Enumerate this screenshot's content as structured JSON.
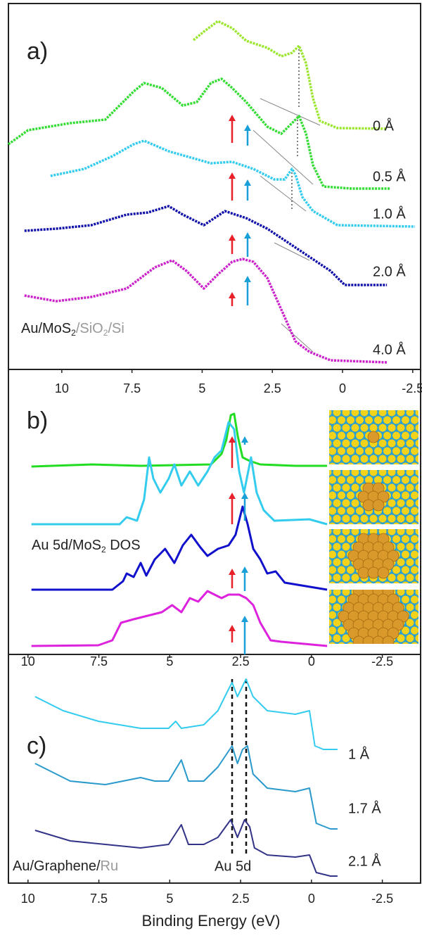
{
  "chart_data": [
    {
      "type": "line",
      "label": "a)",
      "sample_label": [
        "Au/MoS",
        "2",
        "/SiO",
        "2",
        "/Si"
      ],
      "xlim": [
        11.9,
        -2.78
      ],
      "ylim": [
        0,
        520
      ],
      "series": [
        {
          "name": "0 Å",
          "color": "#9be62e",
          "x": [
            5.31,
            4.94,
            4.44,
            3.93,
            3.43,
            2.68,
            2.18,
            1.8,
            1.55,
            1.3,
            1.05,
            0.8,
            0.18,
            -1.58
          ],
          "values": [
            468,
            480,
            495,
            485,
            467,
            457,
            445,
            450,
            460,
            435,
            385,
            353,
            343,
            342
          ]
        },
        {
          "name": "0.5 Å",
          "color": "#33dd33",
          "x": [
            11.9,
            11.2,
            9.7,
            8.45,
            7.44,
            7.07,
            6.44,
            5.69,
            5.19,
            4.69,
            4.31,
            3.93,
            3.43,
            2.68,
            2.18,
            1.8,
            1.55,
            1.3,
            1.05,
            0.68,
            -0.33,
            -1.7
          ],
          "values": [
            320,
            340,
            350,
            355,
            395,
            407,
            400,
            375,
            380,
            407,
            413,
            400,
            380,
            345,
            335,
            350,
            360,
            335,
            290,
            260,
            257,
            257
          ]
        },
        {
          "name": "1.0 Å",
          "color": "#33ccee",
          "x": [
            10.4,
            9.2,
            8.2,
            7.44,
            7.07,
            6.19,
            5.31,
            4.69,
            3.93,
            3.18,
            2.43,
            2.06,
            1.8,
            1.68,
            1.43,
            1.05,
            0.18,
            -2.58
          ],
          "values": [
            275,
            285,
            303,
            320,
            325,
            310,
            300,
            293,
            295,
            285,
            270,
            270,
            285,
            277,
            245,
            225,
            205,
            203
          ]
        },
        {
          "name": "2.0 Å",
          "color": "#1111aa",
          "x": [
            11.33,
            10.2,
            8.95,
            7.69,
            6.94,
            6.19,
            5.69,
            4.94,
            4.19,
            3.43,
            2.68,
            1.93,
            1.18,
            0.43,
            -0.08,
            -1.58
          ],
          "values": [
            197,
            200,
            205,
            220,
            223,
            232,
            220,
            205,
            225,
            215,
            200,
            180,
            160,
            140,
            120,
            120
          ]
        },
        {
          "name": "4.0 Å",
          "color": "#cc22cc",
          "x": [
            11.33,
            10.2,
            8.95,
            7.69,
            6.69,
            6.07,
            5.56,
            4.94,
            4.44,
            3.93,
            3.56,
            3.18,
            2.68,
            2.18,
            1.68,
            1.18,
            0.43,
            -1.58
          ],
          "values": [
            105,
            97,
            103,
            115,
            145,
            155,
            140,
            115,
            135,
            153,
            157,
            153,
            130,
            85,
            40,
            25,
            13,
            10
          ]
        }
      ]
    },
    {
      "type": "line",
      "label": "b)",
      "sample_label": [
        "Au 5d/MoS",
        "2",
        " DOS"
      ],
      "xlim": [
        11.9,
        -2.78
      ],
      "ylim": [
        0,
        405
      ],
      "xticks": [
        10,
        7.5,
        5,
        2.5,
        0,
        -2.5
      ],
      "series": [
        {
          "color": "#22dd22",
          "x": [
            11.08,
            8.95,
            7.19,
            4.69,
            4.31,
            4.14,
            3.98,
            3.86,
            3.73,
            3.56,
            3.31,
            2.93,
            1.68,
            0.55
          ],
          "values": [
            267,
            270,
            268,
            270,
            285,
            305,
            340,
            342,
            310,
            280,
            275,
            270,
            268,
            268
          ]
        },
        {
          "color": "#33ccee",
          "x": [
            11.08,
            7.94,
            7.69,
            7.32,
            7.07,
            6.89,
            6.74,
            6.49,
            6.19,
            5.99,
            5.74,
            5.44,
            5.14,
            4.81,
            4.56,
            4.31,
            4.06,
            3.86,
            3.68,
            3.51,
            3.26,
            3.06,
            2.81,
            2.43,
            1.18,
            0.55
          ],
          "values": [
            185,
            185,
            195,
            190,
            220,
            280,
            250,
            230,
            250,
            270,
            240,
            260,
            240,
            260,
            280,
            290,
            330,
            320,
            260,
            230,
            280,
            230,
            205,
            190,
            192,
            185
          ]
        },
        {
          "color": "#1111cc",
          "x": [
            11.08,
            8.2,
            7.82,
            7.69,
            7.44,
            7.19,
            6.99,
            6.69,
            6.32,
            5.99,
            5.69,
            5.39,
            5.06,
            4.81,
            4.44,
            4.06,
            3.81,
            3.56,
            3.38,
            3.18,
            2.93,
            2.68,
            2.38,
            2.06,
            0.55
          ],
          "values": [
            92,
            92,
            104,
            115,
            110,
            130,
            112,
            135,
            150,
            130,
            155,
            170,
            152,
            140,
            150,
            155,
            170,
            210,
            185,
            150,
            135,
            115,
            118,
            102,
            92
          ]
        },
        {
          "color": "#dd22dd",
          "x": [
            11.08,
            8.7,
            8.2,
            7.89,
            7.44,
            6.94,
            6.44,
            6.07,
            5.74,
            5.44,
            5.14,
            4.81,
            4.56,
            4.31,
            4.06,
            3.68,
            3.43,
            3.18,
            2.93,
            2.56,
            2.18,
            0.55
          ],
          "values": [
            12,
            13,
            20,
            45,
            50,
            55,
            60,
            70,
            60,
            80,
            75,
            90,
            85,
            80,
            85,
            85,
            80,
            70,
            45,
            20,
            18,
            12
          ]
        }
      ]
    },
    {
      "type": "line",
      "label": "c)",
      "sample_label": [
        "Au/Graphene/",
        "Ru"
      ],
      "annotation": "Au 5d",
      "xlabel": "Binding Energy (eV)",
      "xlim": [
        10.69,
        -3.85
      ],
      "ylim": [
        0,
        325
      ],
      "xticks": [
        10,
        7.5,
        5,
        2.5,
        0,
        -2.5
      ],
      "series": [
        {
          "name": "1 Å",
          "color": "#33ccee",
          "x": [
            9.75,
            8.76,
            7.52,
            6.03,
            5.04,
            4.79,
            4.59,
            3.8,
            3.3,
            2.93,
            2.8,
            2.61,
            2.43,
            2.31,
            2.06,
            1.56,
            0.57,
            0.07,
            -0.12,
            -0.42,
            -0.92
          ],
          "values": [
            265,
            245,
            230,
            220,
            220,
            230,
            220,
            225,
            245,
            275,
            285,
            265,
            280,
            290,
            265,
            245,
            240,
            245,
            195,
            190,
            190
          ]
        },
        {
          "name": "1.7 Å",
          "color": "#2a99cc",
          "x": [
            9.75,
            8.51,
            7.27,
            6.03,
            5.53,
            5.04,
            4.59,
            4.34,
            3.8,
            3.3,
            2.8,
            2.61,
            2.43,
            2.26,
            2.06,
            1.56,
            0.57,
            0.07,
            -0.17,
            -0.67,
            -0.92
          ],
          "values": [
            170,
            145,
            140,
            150,
            145,
            145,
            175,
            145,
            145,
            165,
            195,
            170,
            190,
            195,
            155,
            135,
            130,
            135,
            85,
            77,
            77
          ]
        },
        {
          "name": "2.1 Å",
          "color": "#333388",
          "x": [
            9.75,
            8.51,
            7.27,
            6.03,
            5.04,
            4.59,
            4.34,
            3.8,
            3.3,
            2.85,
            2.61,
            2.36,
            2.18,
            2.01,
            1.56,
            0.57,
            0.07,
            -0.17,
            -0.67,
            -0.92
          ],
          "values": [
            75,
            60,
            55,
            50,
            55,
            83,
            55,
            55,
            65,
            90,
            65,
            90,
            80,
            50,
            40,
            37,
            40,
            15,
            10,
            10
          ]
        }
      ]
    }
  ]
}
